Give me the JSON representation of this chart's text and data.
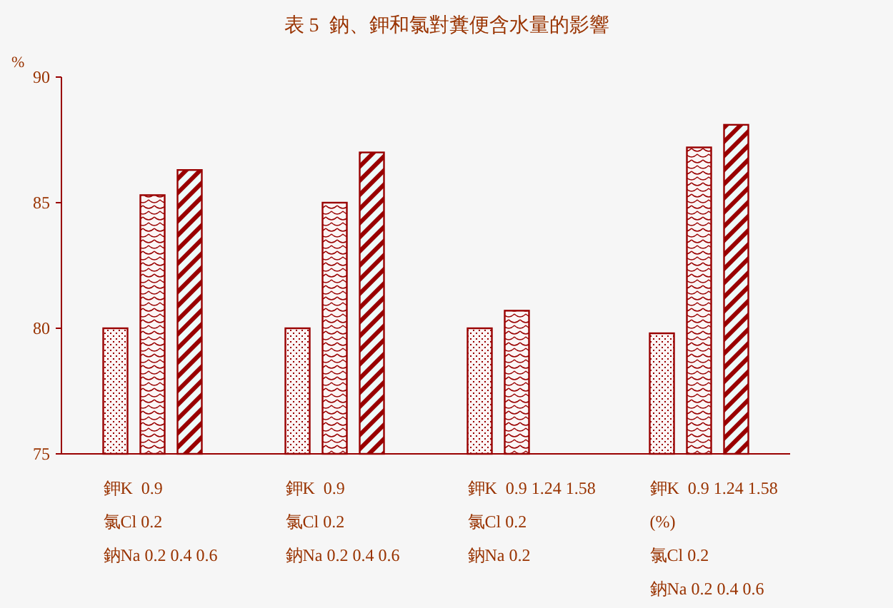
{
  "chart_data": {
    "type": "bar",
    "title": "表 5  鈉、鉀和氯對糞便含水量的影響",
    "ylabel": "%",
    "categories": [
      "鉀K  0.9\n氯Cl 0.2\n鈉Na 0.2 0.4 0.6",
      "鉀K  0.9\n氯Cl 0.2\n鈉Na 0.2 0.4 0.6",
      "鉀K  0.9 1.24 1.58\n氯Cl 0.2\n鈉Na 0.2",
      "鉀K  0.9 1.24 1.58\n(%)\n氯Cl 0.2\n鈉Na 0.2 0.4 0.6"
    ],
    "series": [
      {
        "color": "#990000",
        "values": [
          80,
          80,
          80,
          79.8
        ]
      },
      {
        "color": "#990000",
        "values": [
          85.3,
          85,
          80.7,
          87.2
        ]
      },
      {
        "color": "#990000",
        "values": [
          86.3,
          87,
          null,
          88.1
        ]
      }
    ],
    "ylim": [
      75,
      90
    ],
    "yticks": [
      75,
      80,
      85,
      90
    ]
  }
}
